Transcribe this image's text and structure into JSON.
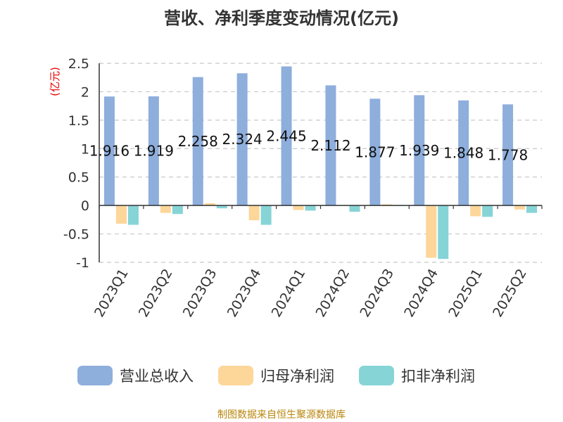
{
  "chart_data": {
    "type": "bar",
    "title": "营收、净利季度变动情况(亿元)",
    "ylabel": "(亿元)",
    "xlabel": "",
    "ylim": [
      -1,
      2.5
    ],
    "yticks": [
      2.5,
      2,
      1.5,
      1,
      0.5,
      0,
      -0.5,
      -1
    ],
    "ytick_labels": [
      "2.5",
      "2",
      "1.5",
      "1",
      "0.5",
      "0",
      "-0.5",
      "-1"
    ],
    "grid": true,
    "legend_position": "bottom",
    "categories": [
      "2023Q1",
      "2023Q2",
      "2023Q3",
      "2023Q4",
      "2024Q1",
      "2024Q2",
      "2024Q3",
      "2024Q4",
      "2025Q1",
      "2025Q2"
    ],
    "series": [
      {
        "name": "营业总收入",
        "color": "#8eaedc",
        "values": [
          1.916,
          1.919,
          2.258,
          2.324,
          2.445,
          2.112,
          1.877,
          1.939,
          1.848,
          1.778
        ],
        "data_labels": [
          "1.916",
          "1.919",
          "2.258",
          "2.324",
          "2.445",
          "2.112",
          "1.877",
          "1.939",
          "1.848",
          "1.778"
        ]
      },
      {
        "name": "归母净利润",
        "color": "#fdd699",
        "values": [
          -0.32,
          -0.13,
          0.04,
          -0.26,
          -0.08,
          -0.01,
          0.02,
          -0.92,
          -0.19,
          -0.07
        ]
      },
      {
        "name": "扣非净利润",
        "color": "#86d4d6",
        "values": [
          -0.34,
          -0.15,
          -0.05,
          -0.34,
          -0.09,
          -0.11,
          -0.01,
          -0.94,
          -0.2,
          -0.13
        ]
      }
    ]
  },
  "footer": "制图数据来自恒生聚源数据库"
}
